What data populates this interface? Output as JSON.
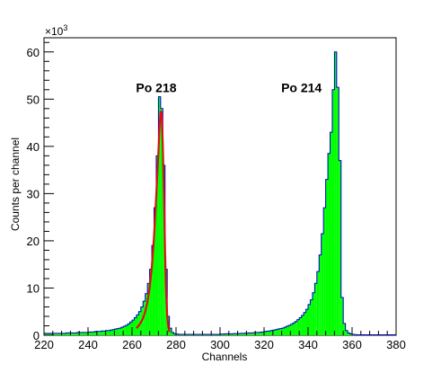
{
  "chart_data": {
    "type": "histogram",
    "xlabel": "Channels",
    "ylabel": "Counts per channel",
    "y_multiplier_label": "×10",
    "y_multiplier_exponent": "3",
    "xlim": [
      220,
      380
    ],
    "ylim": [
      0,
      63
    ],
    "x_ticks": [
      220,
      240,
      260,
      280,
      300,
      320,
      340,
      360,
      380
    ],
    "y_ticks": [
      0,
      10,
      20,
      30,
      40,
      50,
      60
    ],
    "bin_width": 1,
    "fill_color": "#00ff00",
    "edge_color": "#0000cc",
    "fit_color": "#dd1111",
    "annotations": [
      {
        "text": "Po 218",
        "x": 271,
        "y": 51.5
      },
      {
        "text": "Po 214",
        "x": 337,
        "y": 51.5
      }
    ],
    "counts": [
      [
        220,
        0.4
      ],
      [
        221,
        0.4
      ],
      [
        222,
        0.4
      ],
      [
        223,
        0.4
      ],
      [
        224,
        0.4
      ],
      [
        225,
        0.4
      ],
      [
        226,
        0.4
      ],
      [
        227,
        0.4
      ],
      [
        228,
        0.4
      ],
      [
        229,
        0.4
      ],
      [
        230,
        0.5
      ],
      [
        231,
        0.5
      ],
      [
        232,
        0.5
      ],
      [
        233,
        0.5
      ],
      [
        234,
        0.5
      ],
      [
        235,
        0.6
      ],
      [
        236,
        0.6
      ],
      [
        237,
        0.6
      ],
      [
        238,
        0.6
      ],
      [
        239,
        0.6
      ],
      [
        240,
        0.7
      ],
      [
        241,
        0.7
      ],
      [
        242,
        0.7
      ],
      [
        243,
        0.8
      ],
      [
        244,
        0.8
      ],
      [
        245,
        0.8
      ],
      [
        246,
        0.9
      ],
      [
        247,
        0.9
      ],
      [
        248,
        1.0
      ],
      [
        249,
        1.0
      ],
      [
        250,
        1.1
      ],
      [
        251,
        1.2
      ],
      [
        252,
        1.3
      ],
      [
        253,
        1.4
      ],
      [
        254,
        1.5
      ],
      [
        255,
        1.7
      ],
      [
        256,
        1.9
      ],
      [
        257,
        2.1
      ],
      [
        258,
        2.4
      ],
      [
        259,
        2.8
      ],
      [
        260,
        3.2
      ],
      [
        261,
        3.7
      ],
      [
        262,
        4.3
      ],
      [
        263,
        5.0
      ],
      [
        264,
        6.0
      ],
      [
        265,
        7.2
      ],
      [
        266,
        8.8
      ],
      [
        267,
        11.0
      ],
      [
        268,
        14.0
      ],
      [
        269,
        19.0
      ],
      [
        270,
        27.0
      ],
      [
        271,
        38.0
      ],
      [
        272,
        50.5
      ],
      [
        273,
        48.0
      ],
      [
        274,
        36.0
      ],
      [
        275,
        14.0
      ],
      [
        276,
        4.0
      ],
      [
        277,
        1.5
      ],
      [
        278,
        0.6
      ],
      [
        279,
        0.3
      ],
      [
        280,
        0.25
      ],
      [
        281,
        0.2
      ],
      [
        282,
        0.2
      ],
      [
        283,
        0.2
      ],
      [
        284,
        0.2
      ],
      [
        285,
        0.2
      ],
      [
        286,
        0.2
      ],
      [
        287,
        0.2
      ],
      [
        288,
        0.2
      ],
      [
        289,
        0.2
      ],
      [
        290,
        0.2
      ],
      [
        291,
        0.2
      ],
      [
        292,
        0.2
      ],
      [
        293,
        0.2
      ],
      [
        294,
        0.2
      ],
      [
        295,
        0.2
      ],
      [
        296,
        0.2
      ],
      [
        297,
        0.2
      ],
      [
        298,
        0.2
      ],
      [
        299,
        0.2
      ],
      [
        300,
        0.25
      ],
      [
        301,
        0.25
      ],
      [
        302,
        0.3
      ],
      [
        303,
        0.3
      ],
      [
        304,
        0.3
      ],
      [
        305,
        0.3
      ],
      [
        306,
        0.35
      ],
      [
        307,
        0.35
      ],
      [
        308,
        0.35
      ],
      [
        309,
        0.4
      ],
      [
        310,
        0.4
      ],
      [
        311,
        0.45
      ],
      [
        312,
        0.45
      ],
      [
        313,
        0.5
      ],
      [
        314,
        0.5
      ],
      [
        315,
        0.55
      ],
      [
        316,
        0.6
      ],
      [
        317,
        0.6
      ],
      [
        318,
        0.65
      ],
      [
        319,
        0.7
      ],
      [
        320,
        0.8
      ],
      [
        321,
        0.85
      ],
      [
        322,
        0.9
      ],
      [
        323,
        1.0
      ],
      [
        324,
        1.1
      ],
      [
        325,
        1.2
      ],
      [
        326,
        1.3
      ],
      [
        327,
        1.4
      ],
      [
        328,
        1.5
      ],
      [
        329,
        1.7
      ],
      [
        330,
        1.9
      ],
      [
        331,
        2.1
      ],
      [
        332,
        2.3
      ],
      [
        333,
        2.6
      ],
      [
        334,
        2.9
      ],
      [
        335,
        3.3
      ],
      [
        336,
        3.7
      ],
      [
        337,
        4.2
      ],
      [
        338,
        4.8
      ],
      [
        339,
        5.5
      ],
      [
        340,
        6.5
      ],
      [
        341,
        7.5
      ],
      [
        342,
        9.0
      ],
      [
        343,
        11.0
      ],
      [
        344,
        13.5
      ],
      [
        345,
        17.0
      ],
      [
        346,
        21.5
      ],
      [
        347,
        27.0
      ],
      [
        348,
        33.0
      ],
      [
        349,
        38.5
      ],
      [
        350,
        43.0
      ],
      [
        351,
        52.0
      ],
      [
        352,
        60.0
      ],
      [
        353,
        52.5
      ],
      [
        354,
        37.0
      ],
      [
        355,
        8.0
      ],
      [
        356,
        2.5
      ],
      [
        357,
        1.0
      ],
      [
        358,
        0.5
      ],
      [
        359,
        0.3
      ],
      [
        360,
        0.2
      ],
      [
        361,
        0.15
      ],
      [
        362,
        0.1
      ],
      [
        363,
        0.1
      ],
      [
        364,
        0.1
      ],
      [
        365,
        0.1
      ],
      [
        366,
        0.1
      ],
      [
        367,
        0.1
      ],
      [
        368,
        0.1
      ],
      [
        369,
        0.1
      ],
      [
        370,
        0.1
      ],
      [
        371,
        0.1
      ],
      [
        372,
        0.1
      ],
      [
        373,
        0.1
      ],
      [
        374,
        0.1
      ],
      [
        375,
        0.1
      ],
      [
        376,
        0.1
      ],
      [
        377,
        0.1
      ],
      [
        378,
        0.1
      ],
      [
        379,
        0.1
      ]
    ],
    "fit_curve": [
      [
        262.0,
        1.5
      ],
      [
        263.0,
        2.0
      ],
      [
        264.0,
        2.7
      ],
      [
        265.0,
        3.6
      ],
      [
        266.0,
        5.0
      ],
      [
        267.0,
        7.0
      ],
      [
        268.0,
        10.0
      ],
      [
        269.0,
        14.5
      ],
      [
        270.0,
        21.0
      ],
      [
        271.0,
        29.5
      ],
      [
        272.0,
        39.0
      ],
      [
        272.5,
        44.0
      ],
      [
        273.0,
        47.5
      ],
      [
        273.5,
        47.0
      ],
      [
        274.0,
        40.0
      ],
      [
        274.5,
        30.0
      ],
      [
        275.0,
        18.0
      ],
      [
        275.5,
        9.0
      ],
      [
        276.0,
        4.0
      ],
      [
        276.5,
        1.7
      ],
      [
        277.0,
        0.7
      ]
    ]
  }
}
